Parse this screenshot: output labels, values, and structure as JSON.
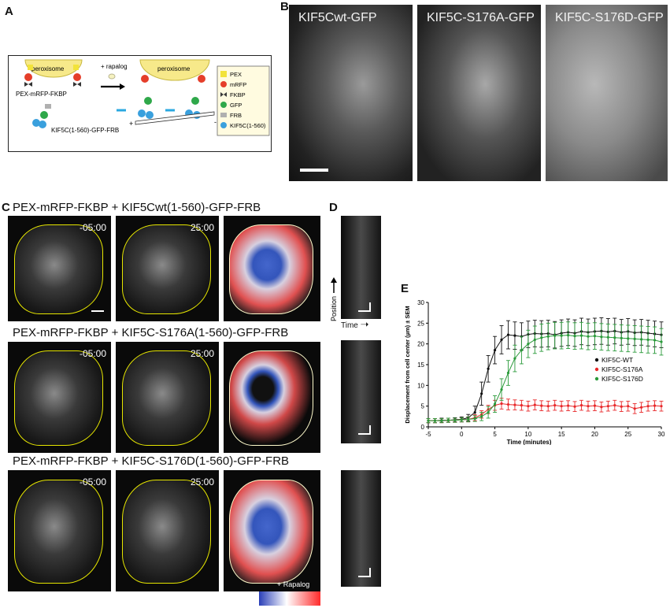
{
  "panels": {
    "A": {
      "label": "A",
      "peroxisome_left": "peroxisome",
      "peroxisome_right": "peroxisome",
      "rapalog": "+ rapalog",
      "construct_top": "PEX-mRFP-FKBP",
      "construct_bottom": "KIF5C(1-560)-GFP-FRB",
      "legend": [
        {
          "label": "PEX",
          "color": "#f2e33a",
          "icon": "square-icon"
        },
        {
          "label": "mRFP",
          "color": "#e53e2a",
          "icon": "circle-icon"
        },
        {
          "label": "FKBP",
          "color": "#3a3a3a",
          "icon": "bowtie-icon"
        },
        {
          "label": "GFP",
          "color": "#2fa84a",
          "icon": "circle-icon"
        },
        {
          "label": "FRB",
          "color": "#b0b0b0",
          "icon": "flag-icon"
        },
        {
          "label": "KIF5C(1-560)",
          "color": "#3aa0dd",
          "icon": "kinesin-icon"
        }
      ],
      "plus": "+",
      "minus": "-"
    },
    "B": {
      "label": "B",
      "images": [
        "KIF5Cwt-GFP",
        "KIF5C-S176A-GFP",
        "KIF5C-S176D-GFP"
      ]
    },
    "C": {
      "label": "C",
      "rows": [
        {
          "title": "PEX-mRFP-FKBP + KIF5Cwt(1-560)-GFP-FRB",
          "t0": "-05:00",
          "t1": "25:00"
        },
        {
          "title": "PEX-mRFP-FKBP + KIF5C-S176A(1-560)-GFP-FRB",
          "t0": "-05:00",
          "t1": "25:00"
        },
        {
          "title": "PEX-mRFP-FKBP + KIF5C-S176D(1-560)-GFP-FRB",
          "t0": "-05:00",
          "t1": "25:00"
        }
      ],
      "colorbar_label": "+ Rapalog"
    },
    "D": {
      "label": "D",
      "position_label": "Position",
      "time_label": "Time"
    },
    "E": {
      "label": "E"
    }
  },
  "chart_data": {
    "type": "line",
    "title": "",
    "xlabel": "Time (minutes)",
    "ylabel": "Displacement from cell center (µm) ± SEM",
    "xlim": [
      -5,
      30
    ],
    "ylim": [
      0,
      30
    ],
    "xticks": [
      -5,
      0,
      5,
      10,
      15,
      20,
      25,
      30
    ],
    "yticks": [
      0,
      5,
      10,
      15,
      20,
      25,
      30
    ],
    "x": [
      -5,
      -4,
      -3,
      -2,
      -1,
      0,
      1,
      2,
      3,
      4,
      5,
      6,
      7,
      8,
      9,
      10,
      11,
      12,
      13,
      14,
      15,
      16,
      17,
      18,
      19,
      20,
      21,
      22,
      23,
      24,
      25,
      26,
      27,
      28,
      29,
      30
    ],
    "series": [
      {
        "name": "KIF5C-WT",
        "color": "#111111",
        "values": [
          1.5,
          1.5,
          1.6,
          1.6,
          1.7,
          1.8,
          2.2,
          3.5,
          8,
          14,
          18.5,
          21,
          22.2,
          22,
          21.8,
          22.3,
          22.5,
          22.4,
          22.5,
          22.2,
          22.6,
          22.8,
          22.6,
          23,
          22.8,
          23,
          23.1,
          22.9,
          23.1,
          22.8,
          23,
          22.7,
          22.8,
          22.6,
          22.4,
          22.2
        ],
        "sem": [
          0.5,
          0.5,
          0.5,
          0.5,
          0.5,
          0.6,
          0.8,
          1.5,
          2.8,
          3.2,
          3.3,
          3.4,
          3.4,
          3.3,
          3.3,
          3.2,
          3.2,
          3.2,
          3.2,
          3.2,
          3.2,
          3.2,
          3.2,
          3.2,
          3.2,
          3.2,
          3.2,
          3.2,
          3.1,
          3.1,
          3.1,
          3.1,
          3.1,
          3.1,
          3.1,
          3.1
        ]
      },
      {
        "name": "KIF5C-S176A",
        "color": "#e8282a",
        "values": [
          1.5,
          1.5,
          1.5,
          1.6,
          1.6,
          1.7,
          1.8,
          2.2,
          3,
          4.2,
          5.2,
          5.6,
          5.4,
          5.3,
          5.2,
          5.0,
          5.3,
          5.1,
          5.0,
          5.2,
          5.0,
          5.1,
          4.9,
          5.2,
          5.0,
          5.1,
          4.8,
          5.0,
          5.2,
          4.9,
          5.0,
          4.4,
          4.7,
          5.0,
          5.1,
          5.0
        ],
        "sem": [
          0.5,
          0.5,
          0.5,
          0.5,
          0.5,
          0.5,
          0.6,
          0.7,
          0.9,
          1.0,
          1.2,
          1.3,
          1.3,
          1.2,
          1.2,
          1.2,
          1.2,
          1.2,
          1.2,
          1.2,
          1.2,
          1.2,
          1.2,
          1.2,
          1.2,
          1.2,
          1.2,
          1.2,
          1.2,
          1.2,
          1.2,
          1.2,
          1.2,
          1.2,
          1.2,
          1.2
        ]
      },
      {
        "name": "KIF5C-S176D",
        "color": "#2a9a3a",
        "values": [
          1.5,
          1.5,
          1.5,
          1.6,
          1.6,
          1.7,
          1.8,
          2.0,
          2.5,
          3.5,
          5.5,
          9,
          13,
          16.5,
          18.5,
          20,
          21,
          21.5,
          21.8,
          22,
          22,
          22.1,
          21.9,
          22,
          21.8,
          21.9,
          21.7,
          21.6,
          21.5,
          21.4,
          21.3,
          21.2,
          21.1,
          21.0,
          20.9,
          20.5
        ],
        "sem": [
          0.5,
          0.5,
          0.5,
          0.5,
          0.5,
          0.5,
          0.6,
          0.7,
          1.0,
          1.4,
          2.0,
          2.6,
          3.0,
          3.2,
          3.3,
          3.3,
          3.3,
          3.3,
          3.2,
          3.2,
          3.2,
          3.2,
          3.2,
          3.2,
          3.2,
          3.2,
          3.2,
          3.2,
          3.2,
          3.2,
          3.2,
          3.2,
          3.2,
          3.2,
          3.2,
          3.2
        ]
      }
    ],
    "legend": [
      "KIF5C-WT",
      "KIF5C-S176A",
      "KIF5C-S176D"
    ],
    "legend_placement": "center-right",
    "grid": false
  }
}
